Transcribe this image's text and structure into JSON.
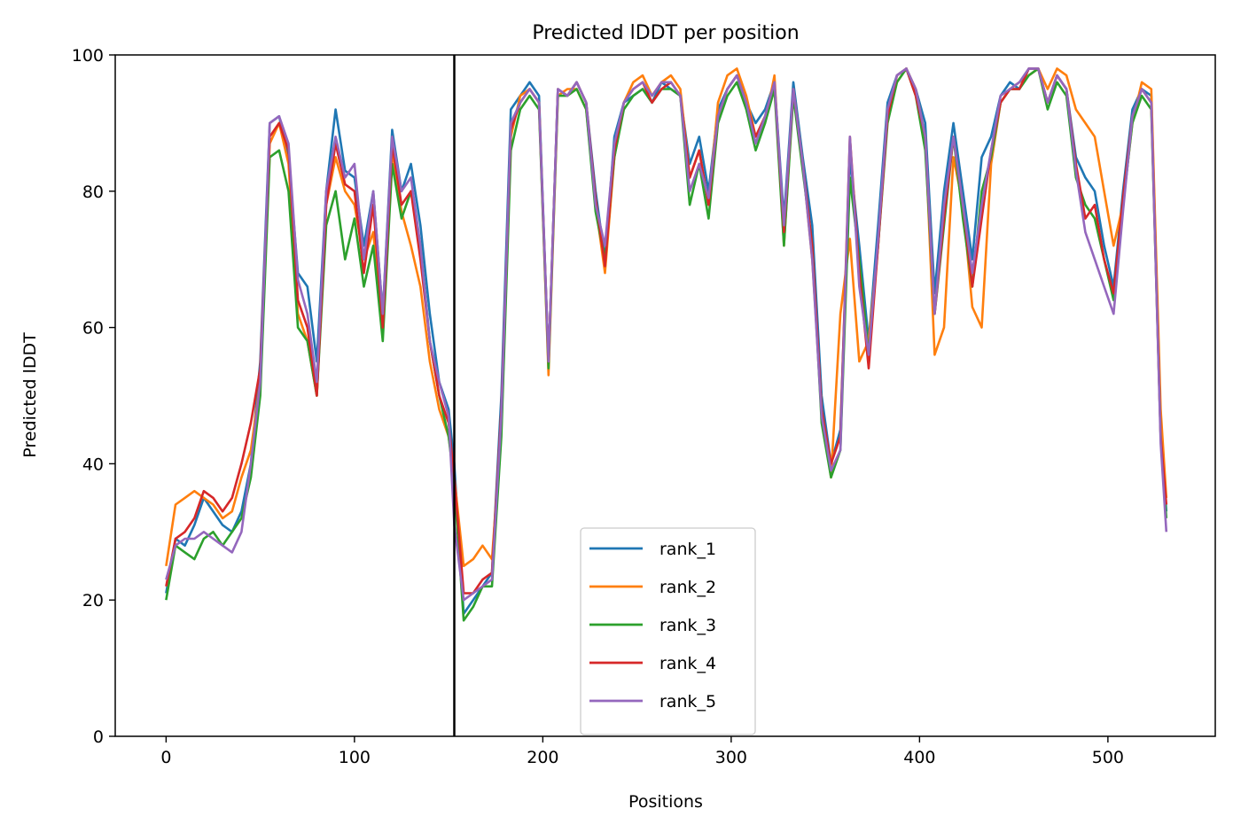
{
  "chart_data": {
    "type": "line",
    "title": "Predicted lDDT per position",
    "xlabel": "Positions",
    "ylabel": "Predicted lDDT",
    "xlim": [
      -27,
      557
    ],
    "ylim": [
      0,
      100
    ],
    "x_ticks": [
      0,
      100,
      200,
      300,
      400,
      500
    ],
    "y_ticks": [
      0,
      20,
      40,
      60,
      80,
      100
    ],
    "x_tick_labels": [
      "0",
      "100",
      "200",
      "300",
      "400",
      "500"
    ],
    "y_tick_labels": [
      "0",
      "20",
      "40",
      "60",
      "80",
      "100"
    ],
    "vline_x": 153,
    "legend_position": "lower center",
    "grid": false,
    "x": [
      0,
      5,
      10,
      15,
      20,
      25,
      30,
      35,
      40,
      45,
      50,
      55,
      60,
      65,
      70,
      75,
      80,
      85,
      90,
      95,
      100,
      105,
      110,
      115,
      120,
      125,
      130,
      135,
      140,
      145,
      150,
      153,
      158,
      163,
      168,
      173,
      178,
      183,
      188,
      193,
      198,
      203,
      208,
      213,
      218,
      223,
      228,
      233,
      238,
      243,
      248,
      253,
      258,
      263,
      268,
      273,
      278,
      283,
      288,
      293,
      298,
      303,
      308,
      313,
      318,
      323,
      328,
      333,
      338,
      343,
      348,
      353,
      358,
      363,
      368,
      373,
      378,
      383,
      388,
      393,
      398,
      403,
      408,
      413,
      418,
      423,
      428,
      433,
      438,
      443,
      448,
      453,
      458,
      463,
      468,
      473,
      478,
      483,
      488,
      493,
      498,
      503,
      508,
      513,
      518,
      523,
      528,
      531
    ],
    "series": [
      {
        "name": "rank_1",
        "color": "#1f77b4",
        "values": [
          21,
          29,
          28,
          31,
          35,
          33,
          31,
          30,
          33,
          40,
          55,
          90,
          91,
          85,
          68,
          66,
          55,
          80,
          92,
          83,
          82,
          72,
          80,
          62,
          89,
          80,
          84,
          75,
          62,
          52,
          48,
          40,
          18,
          20,
          22,
          24,
          50,
          92,
          94,
          96,
          94,
          55,
          95,
          94,
          96,
          93,
          80,
          70,
          88,
          93,
          94,
          95,
          93,
          96,
          95,
          94,
          84,
          88,
          80,
          92,
          95,
          97,
          93,
          90,
          92,
          96,
          76,
          96,
          85,
          75,
          50,
          40,
          45,
          85,
          72,
          58,
          75,
          93,
          97,
          98,
          95,
          90,
          65,
          80,
          90,
          80,
          70,
          85,
          88,
          94,
          96,
          95,
          98,
          98,
          93,
          97,
          95,
          85,
          82,
          80,
          72,
          66,
          80,
          92,
          95,
          94,
          45,
          33
        ]
      },
      {
        "name": "rank_2",
        "color": "#ff7f0e",
        "values": [
          25,
          34,
          35,
          36,
          35,
          34,
          32,
          33,
          38,
          42,
          52,
          87,
          90,
          84,
          62,
          58,
          50,
          78,
          85,
          80,
          78,
          70,
          74,
          60,
          86,
          77,
          72,
          66,
          55,
          48,
          44,
          38,
          25,
          26,
          28,
          26,
          45,
          88,
          94,
          95,
          93,
          53,
          94,
          95,
          95,
          92,
          78,
          68,
          85,
          93,
          96,
          97,
          94,
          96,
          97,
          95,
          82,
          86,
          78,
          93,
          97,
          98,
          94,
          88,
          90,
          97,
          72,
          95,
          84,
          70,
          48,
          38,
          62,
          73,
          55,
          58,
          72,
          92,
          96,
          98,
          95,
          88,
          56,
          60,
          85,
          78,
          63,
          60,
          84,
          93,
          95,
          96,
          97,
          98,
          95,
          98,
          97,
          92,
          90,
          88,
          80,
          72,
          78,
          90,
          96,
          95,
          48,
          35
        ]
      },
      {
        "name": "rank_3",
        "color": "#2ca02c",
        "values": [
          20,
          28,
          27,
          26,
          29,
          30,
          28,
          30,
          32,
          38,
          50,
          85,
          86,
          80,
          60,
          58,
          50,
          75,
          80,
          70,
          76,
          66,
          72,
          58,
          84,
          76,
          80,
          72,
          58,
          50,
          44,
          37,
          17,
          19,
          22,
          22,
          44,
          86,
          92,
          94,
          92,
          54,
          94,
          94,
          95,
          92,
          77,
          70,
          85,
          92,
          94,
          95,
          93,
          95,
          95,
          94,
          78,
          84,
          76,
          90,
          94,
          96,
          92,
          86,
          90,
          95,
          72,
          94,
          83,
          72,
          46,
          38,
          42,
          82,
          70,
          56,
          72,
          90,
          96,
          98,
          94,
          86,
          62,
          75,
          88,
          76,
          66,
          80,
          85,
          93,
          95,
          95,
          97,
          98,
          92,
          96,
          94,
          82,
          78,
          76,
          70,
          64,
          78,
          90,
          94,
          92,
          44,
          32
        ]
      },
      {
        "name": "rank_4",
        "color": "#d62728",
        "values": [
          22,
          29,
          30,
          32,
          36,
          35,
          33,
          35,
          40,
          46,
          54,
          88,
          90,
          86,
          64,
          60,
          50,
          78,
          87,
          81,
          80,
          68,
          78,
          60,
          87,
          78,
          80,
          70,
          58,
          50,
          46,
          38,
          21,
          21,
          23,
          24,
          48,
          89,
          93,
          95,
          93,
          55,
          95,
          94,
          96,
          93,
          79,
          69,
          86,
          93,
          95,
          96,
          93,
          95,
          96,
          94,
          82,
          86,
          78,
          91,
          95,
          97,
          93,
          88,
          91,
          96,
          74,
          95,
          84,
          72,
          48,
          40,
          44,
          88,
          68,
          54,
          72,
          91,
          97,
          98,
          94,
          88,
          62,
          76,
          88,
          78,
          66,
          76,
          86,
          93,
          95,
          95,
          98,
          98,
          93,
          97,
          95,
          84,
          76,
          78,
          70,
          65,
          79,
          91,
          95,
          93,
          44,
          34
        ]
      },
      {
        "name": "rank_5",
        "color": "#9467bd",
        "values": [
          23,
          28,
          29,
          29,
          30,
          29,
          28,
          27,
          30,
          40,
          52,
          90,
          91,
          87,
          67,
          62,
          52,
          80,
          88,
          82,
          84,
          70,
          80,
          62,
          88,
          80,
          82,
          72,
          58,
          52,
          47,
          31,
          20,
          21,
          22,
          23,
          47,
          90,
          93,
          95,
          93,
          55,
          95,
          94,
          96,
          93,
          78,
          72,
          87,
          93,
          95,
          96,
          94,
          96,
          96,
          94,
          80,
          84,
          79,
          91,
          95,
          97,
          93,
          87,
          91,
          96,
          75,
          95,
          84,
          70,
          47,
          39,
          42,
          88,
          66,
          56,
          73,
          92,
          97,
          98,
          95,
          88,
          62,
          78,
          88,
          78,
          68,
          78,
          86,
          94,
          95,
          96,
          98,
          98,
          93,
          97,
          95,
          83,
          74,
          70,
          66,
          62,
          77,
          91,
          95,
          93,
          43,
          30
        ]
      }
    ]
  }
}
